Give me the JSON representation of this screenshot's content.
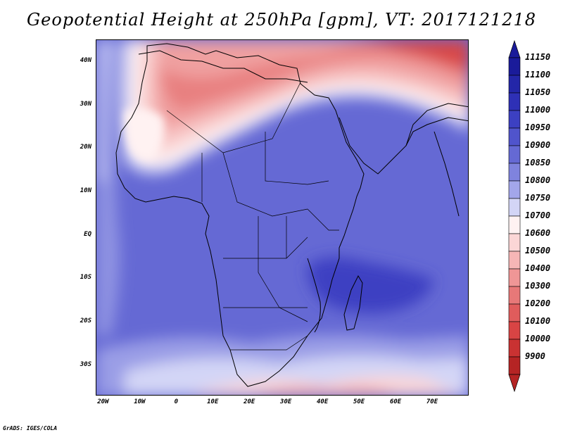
{
  "title": "Geopotential Height at 250hPa [gpm], VT: 2017121218",
  "credit": "GrADS: IGES/COLA",
  "map": {
    "variable": "Geopotential Height",
    "level": "250hPa",
    "units": "gpm",
    "valid_time": "2017121218",
    "lon_range": [
      -22,
      80
    ],
    "lat_range": [
      -37,
      45
    ],
    "lat_ticks": [
      {
        "label": "40N",
        "value": 40
      },
      {
        "label": "30N",
        "value": 30
      },
      {
        "label": "20N",
        "value": 20
      },
      {
        "label": "10N",
        "value": 10
      },
      {
        "label": "EQ",
        "value": 0
      },
      {
        "label": "10S",
        "value": -10
      },
      {
        "label": "20S",
        "value": -20
      },
      {
        "label": "30S",
        "value": -30
      }
    ],
    "lon_ticks": [
      {
        "label": "20W",
        "value": -20
      },
      {
        "label": "10W",
        "value": -10
      },
      {
        "label": "0",
        "value": 0
      },
      {
        "label": "10E",
        "value": 10
      },
      {
        "label": "20E",
        "value": 20
      },
      {
        "label": "30E",
        "value": 30
      },
      {
        "label": "40E",
        "value": 40
      },
      {
        "label": "50E",
        "value": 50
      },
      {
        "label": "60E",
        "value": 60
      },
      {
        "label": "70E",
        "value": 70
      }
    ]
  },
  "legend": {
    "entries": [
      {
        "label": "11150",
        "color": "#1a1b9a"
      },
      {
        "label": "11100",
        "color": "#2326a8"
      },
      {
        "label": "11050",
        "color": "#2e30b6"
      },
      {
        "label": "11000",
        "color": "#3c40c2"
      },
      {
        "label": "10950",
        "color": "#5054cc"
      },
      {
        "label": "10900",
        "color": "#6569d4"
      },
      {
        "label": "10850",
        "color": "#7f83de"
      },
      {
        "label": "10800",
        "color": "#a3a6ea"
      },
      {
        "label": "10750",
        "color": "#d3d5f6"
      },
      {
        "label": "10700",
        "color": "#fff2f2"
      },
      {
        "label": "10600",
        "color": "#fbd6d6"
      },
      {
        "label": "10500",
        "color": "#f6b6b6"
      },
      {
        "label": "10400",
        "color": "#ef9696"
      },
      {
        "label": "10300",
        "color": "#e77878"
      },
      {
        "label": "10200",
        "color": "#e05c5c"
      },
      {
        "label": "10100",
        "color": "#d84444"
      },
      {
        "label": "10000",
        "color": "#c93232"
      },
      {
        "label": "9900",
        "color": "#b52424"
      }
    ],
    "top_arrow_color": "#1a1b9a",
    "bottom_arrow_color": "#b52424"
  }
}
